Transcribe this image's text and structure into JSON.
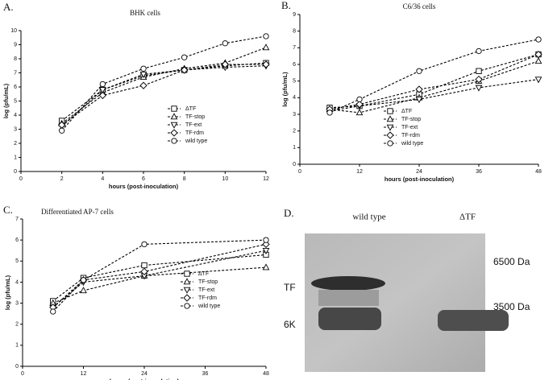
{
  "chart_data": [
    {
      "type": "line",
      "panel_label": "A.",
      "title": "BHK cells",
      "x_label": "hours (post-inoculation)",
      "y_label": "log (pfu/mL)",
      "x": [
        2,
        4,
        6,
        8,
        10,
        12
      ],
      "xlim": [
        0,
        12
      ],
      "xticks": [
        0,
        2,
        4,
        6,
        8,
        10,
        12
      ],
      "ylim": [
        0,
        10
      ],
      "yticks": [
        0,
        1,
        2,
        3,
        4,
        5,
        6,
        7,
        8,
        9,
        10
      ],
      "line_style": "dashed",
      "series": [
        {
          "name": "ΔTF",
          "marker": "square",
          "color": "#000000",
          "values": [
            3.6,
            5.8,
            6.8,
            7.2,
            7.5,
            7.7
          ]
        },
        {
          "name": "TF-stop",
          "marker": "triangle-up",
          "color": "#000000",
          "values": [
            3.4,
            5.6,
            6.7,
            7.3,
            7.7,
            8.8
          ]
        },
        {
          "name": "TF-ext",
          "marker": "triangle-down",
          "color": "#000000",
          "values": [
            3.2,
            5.8,
            6.9,
            7.2,
            7.4,
            7.5
          ]
        },
        {
          "name": "TF-rdm",
          "marker": "diamond",
          "color": "#000000",
          "values": [
            3.3,
            5.4,
            6.1,
            7.2,
            7.6,
            7.6
          ]
        },
        {
          "name": "wild type",
          "marker": "circle",
          "color": "#000000",
          "values": [
            2.9,
            6.2,
            7.3,
            8.1,
            9.1,
            9.6
          ]
        }
      ]
    },
    {
      "type": "line",
      "panel_label": "B.",
      "title": "C6/36 cells",
      "x_label": "hours (post-inoculation)",
      "y_label": "log (pfu/mL)",
      "x": [
        6,
        12,
        24,
        36,
        48
      ],
      "xlim": [
        0,
        48
      ],
      "xticks": [
        0,
        12,
        24,
        36,
        48
      ],
      "ylim": [
        0,
        9
      ],
      "yticks": [
        0,
        1,
        2,
        3,
        4,
        5,
        6,
        7,
        8,
        9
      ],
      "line_style": "dashed",
      "series": [
        {
          "name": "ΔTF",
          "marker": "square",
          "color": "#000000",
          "values": [
            3.4,
            3.5,
            4.2,
            5.6,
            6.6
          ]
        },
        {
          "name": "TF-stop",
          "marker": "triangle-up",
          "color": "#000000",
          "values": [
            3.3,
            3.1,
            4.0,
            5.0,
            6.2
          ]
        },
        {
          "name": "TF-ext",
          "marker": "triangle-down",
          "color": "#000000",
          "values": [
            3.2,
            3.5,
            3.9,
            4.6,
            5.1
          ]
        },
        {
          "name": "TF-rdm",
          "marker": "diamond",
          "color": "#000000",
          "values": [
            3.3,
            3.6,
            4.5,
            5.1,
            6.6
          ]
        },
        {
          "name": "wild type",
          "marker": "circle",
          "color": "#000000",
          "values": [
            3.1,
            3.9,
            5.6,
            6.8,
            7.5
          ]
        }
      ]
    },
    {
      "type": "line",
      "panel_label": "C.",
      "title": "Differentiated AP-7 cells",
      "x_label": "hours (post-inoculation)",
      "y_label": "log (pfu/mL)",
      "x": [
        6,
        12,
        24,
        48
      ],
      "xlim": [
        0,
        48
      ],
      "xticks": [
        0,
        12,
        24,
        36,
        48
      ],
      "ylim": [
        0,
        7
      ],
      "yticks": [
        0,
        1,
        2,
        3,
        4,
        5,
        6,
        7
      ],
      "line_style": "dashed",
      "series": [
        {
          "name": "ΔTF",
          "marker": "square",
          "color": "#000000",
          "values": [
            3.1,
            4.2,
            4.8,
            5.3
          ]
        },
        {
          "name": "TF-stop",
          "marker": "triangle-up",
          "color": "#000000",
          "values": [
            3.0,
            3.6,
            4.3,
            4.7
          ]
        },
        {
          "name": "TF-ext",
          "marker": "triangle-down",
          "color": "#000000",
          "values": [
            2.8,
            4.0,
            4.3,
            5.5
          ]
        },
        {
          "name": "TF-rdm",
          "marker": "diamond",
          "color": "#000000",
          "values": [
            2.8,
            4.1,
            4.5,
            5.8
          ]
        },
        {
          "name": "wild type",
          "marker": "circle",
          "color": "#000000",
          "values": [
            2.6,
            4.1,
            5.8,
            6.0
          ]
        }
      ]
    }
  ],
  "blot": {
    "panel_label": "D.",
    "lanes": [
      "wild type",
      "ΔTF"
    ],
    "band_labels": [
      "TF",
      "6K"
    ],
    "markers": [
      "6500 Da",
      "3500 Da"
    ]
  }
}
